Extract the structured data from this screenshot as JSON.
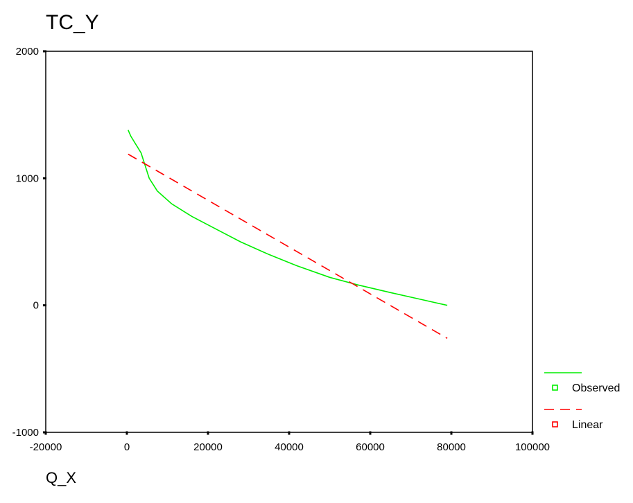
{
  "chart_data": {
    "type": "line",
    "title": "TC_Y",
    "xlabel": "Q_X",
    "ylabel": "",
    "xlim": [
      -20000,
      100000
    ],
    "ylim": [
      -1000,
      2000
    ],
    "x_ticks": [
      -20000,
      0,
      20000,
      40000,
      60000,
      80000,
      100000
    ],
    "y_ticks": [
      -1000,
      0,
      1000,
      2000
    ],
    "x_tick_labels": [
      "-20000",
      "0",
      "20000",
      "40000",
      "60000",
      "80000",
      "100000"
    ],
    "y_tick_labels": [
      "-1000",
      "0",
      "1000",
      "2000"
    ],
    "grid": false,
    "legend_position": "right-bottom",
    "series": [
      {
        "name": "Observed",
        "color": "#00ee00",
        "style": "solid",
        "x": [
          300,
          1000,
          3500,
          5500,
          7500,
          11000,
          16000,
          22000,
          28000,
          35000,
          42000,
          50000,
          57000,
          65000,
          72000,
          79000
        ],
        "y": [
          1380,
          1330,
          1200,
          1000,
          900,
          800,
          700,
          600,
          500,
          400,
          310,
          220,
          160,
          100,
          50,
          0
        ]
      },
      {
        "name": "Linear",
        "color": "#ff0000",
        "style": "dashed",
        "x": [
          300,
          79000
        ],
        "y": [
          1190,
          -260
        ]
      }
    ]
  }
}
